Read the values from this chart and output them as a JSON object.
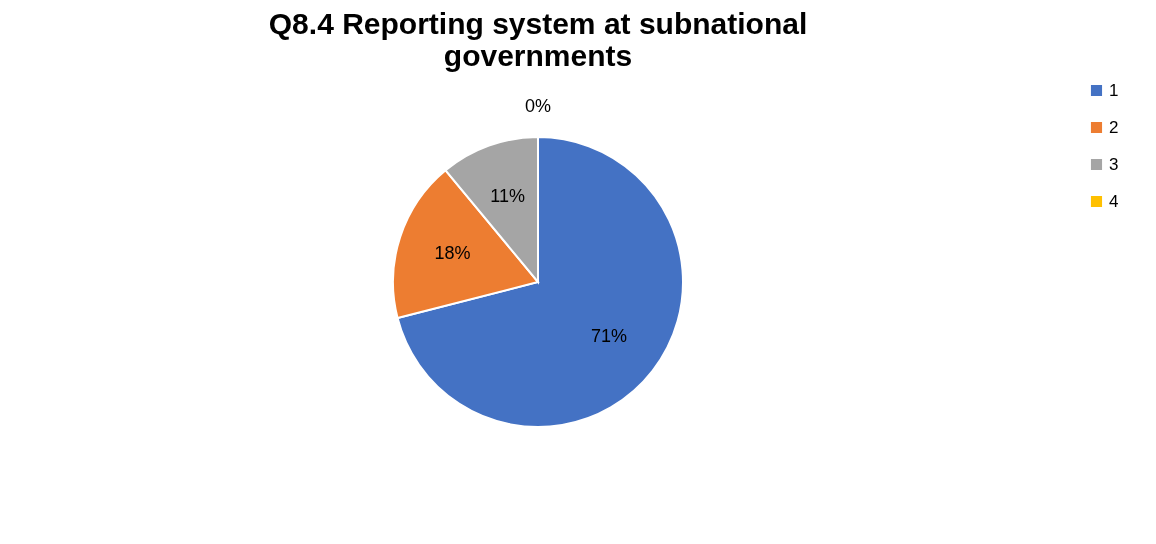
{
  "chart_data": {
    "type": "pie",
    "title": "Q8.4 Reporting system at subnational governments",
    "categories": [
      "1",
      "2",
      "3",
      "4"
    ],
    "values": [
      71,
      18,
      11,
      0
    ],
    "value_labels": [
      "71%",
      "18%",
      "11%",
      "0%"
    ],
    "colors": [
      "#4472c4",
      "#ed7d31",
      "#a5a5a5",
      "#ffc000"
    ],
    "legend": "right"
  }
}
